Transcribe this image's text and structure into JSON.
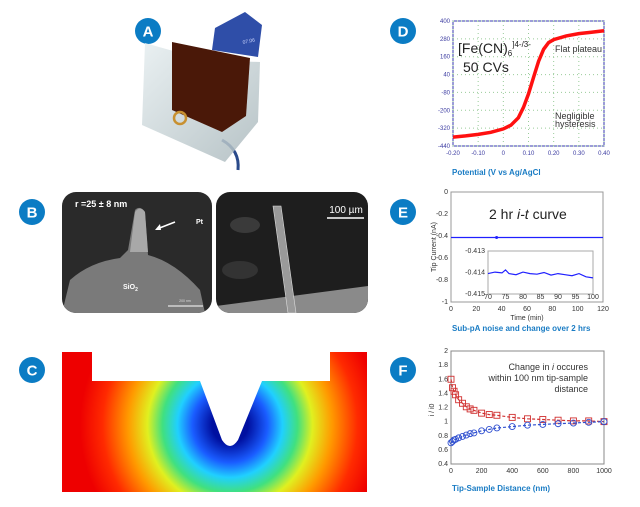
{
  "badge_color": "#0b7cc4",
  "panels": {
    "a": {
      "label": "A",
      "tab_text": "07.06"
    },
    "b": {
      "label": "B",
      "radius_text": "r =25 ± 8 nm",
      "pt_label": "Pt",
      "sio2_label": "SiO",
      "sio2_sub": "2",
      "scale_left": "200 nm",
      "scale_right": "100 µm"
    },
    "c": {
      "label": "C"
    },
    "d": {
      "label": "D",
      "species": "[Fe(CN)",
      "species_sub": "6",
      "species_sup": "]4-/3-",
      "cvs": "50 CVs",
      "note1": "Flat plateau",
      "note2a": "Negligible",
      "note2b": "hysteresis",
      "caption": "Potential (V vs Ag/AgCl"
    },
    "e": {
      "label": "E",
      "title_a": "2 hr ",
      "title_b": "i-t",
      "title_c": " curve",
      "caption": "Sub-pA noise and change over 2 hrs"
    },
    "f": {
      "label": "F",
      "note1a": "Change in ",
      "note1b": "i",
      "note1c": " occures",
      "note2": "within 100 nm tip-sample",
      "note3": "distance",
      "caption": "Tip-Sample Distance (nm)"
    }
  },
  "chart_data": [
    {
      "id": "d",
      "type": "line",
      "xlim": [
        -0.2,
        0.4
      ],
      "ylim": [
        -440,
        400
      ],
      "grid": true,
      "xticks": [
        "-0.20",
        "-0.10",
        "0",
        "0.10",
        "0.20",
        "0.30",
        "0.40"
      ],
      "yticks": [
        "400",
        "280",
        "160",
        "40",
        "-80",
        "-200",
        "-320",
        "-440"
      ],
      "xlabel": "Potential (V vs Ag/AgCl",
      "color": "#ff1010",
      "x": [
        -0.2,
        -0.15,
        -0.1,
        -0.05,
        0,
        0.03,
        0.06,
        0.08,
        0.1,
        0.12,
        0.14,
        0.16,
        0.18,
        0.2,
        0.25,
        0.3,
        0.35,
        0.4
      ],
      "y": [
        -380,
        -372,
        -362,
        -348,
        -325,
        -300,
        -250,
        -180,
        -90,
        20,
        130,
        210,
        255,
        275,
        300,
        315,
        325,
        335
      ]
    },
    {
      "id": "e",
      "type": "line",
      "xlim": [
        0,
        120
      ],
      "ylim": [
        -1,
        0
      ],
      "grid": false,
      "xticks": [
        "0",
        "20",
        "40",
        "60",
        "80",
        "100",
        "120"
      ],
      "yticks": [
        "0",
        "-0.2",
        "-0.4",
        "-0.6",
        "-0.8",
        "-1"
      ],
      "xlabel": "Time (min)",
      "ylabel": "Tip Current (nA)",
      "color": "#2020ff",
      "x": [
        0,
        120
      ],
      "y": [
        -0.414,
        -0.414
      ],
      "inset": {
        "xlim": [
          70,
          100
        ],
        "ylim": [
          -0.415,
          -0.413
        ],
        "xticks": [
          "70",
          "75",
          "80",
          "85",
          "90",
          "95",
          "100"
        ],
        "yticks": [
          "-0.413",
          "-0.414",
          "-0.415"
        ],
        "x": [
          70,
          72,
          74,
          75,
          76,
          78,
          80,
          82,
          84,
          86,
          88,
          90,
          92,
          94,
          96,
          98,
          100
        ],
        "y": [
          -0.41405,
          -0.41398,
          -0.41402,
          -0.41388,
          -0.41405,
          -0.4141,
          -0.41398,
          -0.41405,
          -0.41408,
          -0.414,
          -0.41412,
          -0.41405,
          -0.4141,
          -0.41415,
          -0.41405,
          -0.4142,
          -0.41425
        ]
      }
    },
    {
      "id": "f",
      "type": "scatter",
      "xlim": [
        0,
        1000
      ],
      "ylim": [
        0.4,
        2
      ],
      "grid": false,
      "xticks": [
        "0",
        "200",
        "400",
        "600",
        "800",
        "1000"
      ],
      "yticks": [
        "2",
        "1.8",
        "1.6",
        "1.4",
        "1.2",
        "1",
        "0.8",
        "0.6",
        "0.4"
      ],
      "xlabel": "Tip-Sample Distance (nm)",
      "ylabel": "i / i0",
      "series": [
        {
          "marker": "square",
          "color": "#d03030",
          "x": [
            0,
            10,
            20,
            30,
            50,
            75,
            100,
            125,
            150,
            200,
            250,
            300,
            400,
            500,
            600,
            700,
            800,
            900,
            1000
          ],
          "y": [
            1.6,
            1.48,
            1.43,
            1.38,
            1.31,
            1.26,
            1.21,
            1.18,
            1.16,
            1.12,
            1.1,
            1.09,
            1.06,
            1.04,
            1.03,
            1.02,
            1.01,
            1.01,
            1.0
          ]
        },
        {
          "marker": "circle",
          "color": "#3050d0",
          "x": [
            0,
            10,
            20,
            30,
            50,
            75,
            100,
            125,
            150,
            200,
            250,
            300,
            400,
            500,
            600,
            700,
            800,
            900,
            1000
          ],
          "y": [
            0.7,
            0.72,
            0.74,
            0.75,
            0.77,
            0.79,
            0.81,
            0.83,
            0.84,
            0.87,
            0.89,
            0.91,
            0.93,
            0.95,
            0.96,
            0.97,
            0.98,
            0.99,
            1.0
          ]
        }
      ]
    }
  ]
}
